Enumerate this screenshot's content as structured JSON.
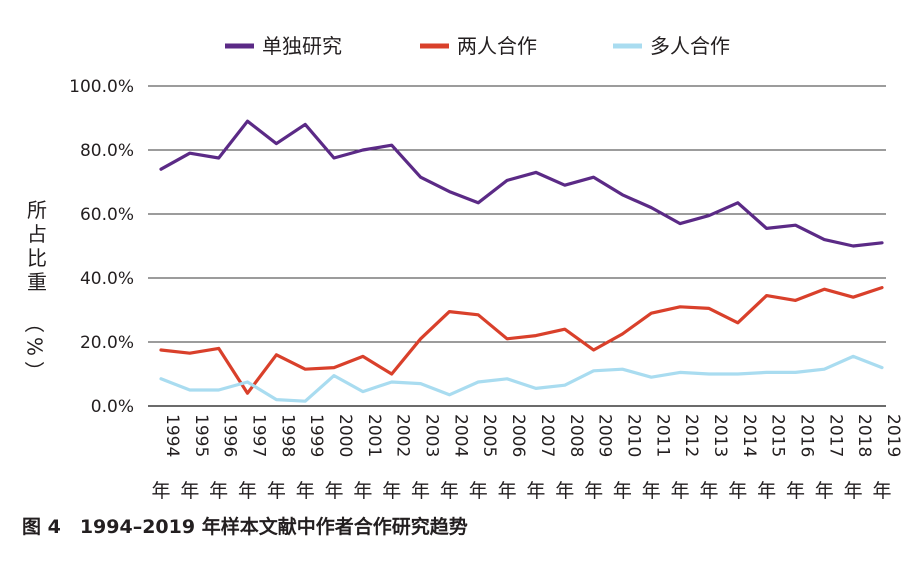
{
  "caption": "图 4　1994–2019 年样本文献中作者合作研究趋势",
  "chart_data": {
    "type": "line",
    "title": "",
    "ylabel": "所占比重（%）",
    "xlabel": "",
    "ylim": [
      0,
      100
    ],
    "yticks": [
      "0.0%",
      "20.0%",
      "40.0%",
      "60.0%",
      "80.0%",
      "100.0%"
    ],
    "grid": true,
    "legend_position": "top",
    "categories": [
      "1994年",
      "1995年",
      "1996年",
      "1997年",
      "1998年",
      "1999年",
      "2000年",
      "2001年",
      "2002年",
      "2003年",
      "2004年",
      "2005年",
      "2006年",
      "2007年",
      "2008年",
      "2009年",
      "2010年",
      "2011年",
      "2012年",
      "2013年",
      "2014年",
      "2015年",
      "2016年",
      "2017年",
      "2018年",
      "2019年"
    ],
    "series": [
      {
        "name": "单独研究",
        "color": "#5b2a86",
        "values": [
          74.0,
          79.0,
          77.5,
          89.0,
          82.0,
          88.0,
          77.5,
          80.0,
          81.5,
          71.5,
          67.0,
          63.5,
          70.5,
          73.0,
          69.0,
          71.5,
          66.0,
          62.0,
          57.0,
          59.5,
          63.5,
          55.5,
          56.5,
          52.0,
          50.0,
          51.0
        ]
      },
      {
        "name": "两人合作",
        "color": "#d9402b",
        "values": [
          17.5,
          16.5,
          18.0,
          4.0,
          16.0,
          11.5,
          12.0,
          15.5,
          10.0,
          21.0,
          29.5,
          28.5,
          21.0,
          22.0,
          24.0,
          17.5,
          22.5,
          29.0,
          31.0,
          30.5,
          26.0,
          34.5,
          33.0,
          36.5,
          34.0,
          37.0
        ]
      },
      {
        "name": "多人合作",
        "color": "#a9dcf0",
        "values": [
          8.5,
          5.0,
          5.0,
          7.5,
          2.0,
          1.5,
          9.5,
          4.5,
          7.5,
          7.0,
          3.5,
          7.5,
          8.5,
          5.5,
          6.5,
          11.0,
          11.5,
          9.0,
          10.5,
          10.0,
          10.0,
          10.5,
          10.5,
          11.5,
          15.5,
          12.0
        ]
      }
    ]
  }
}
